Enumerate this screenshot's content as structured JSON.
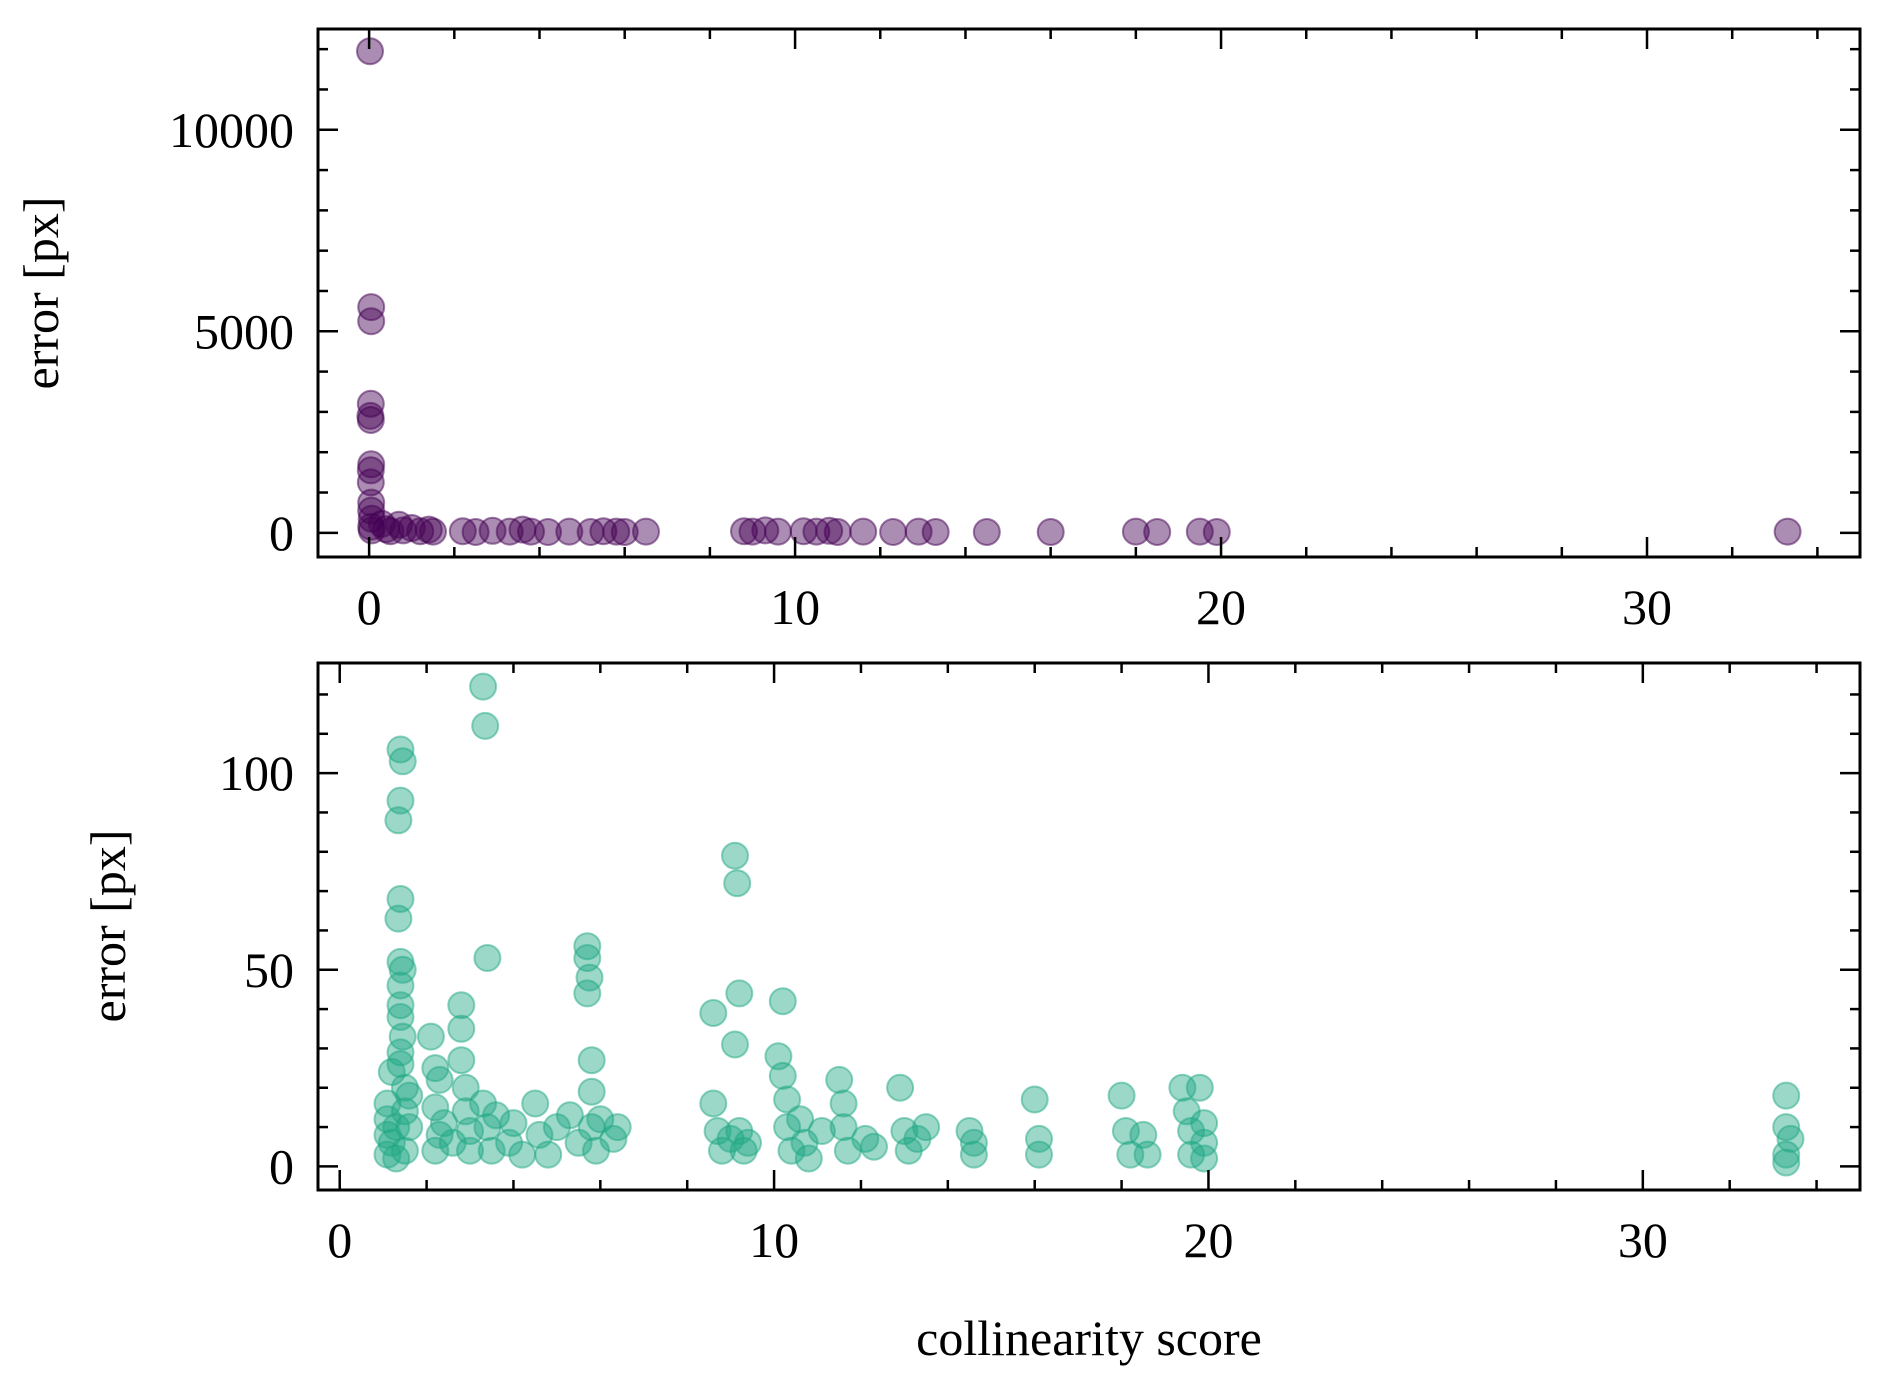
{
  "chart_data": [
    {
      "type": "scatter",
      "title": "",
      "xlabel": "",
      "ylabel": "error [px]",
      "xlim": [
        -1.2,
        35
      ],
      "ylim": [
        -600,
        12500
      ],
      "xticks": [
        0,
        10,
        20,
        30
      ],
      "xtick_labels": [
        "0",
        "10",
        "20",
        "30"
      ],
      "xminor_step": 2,
      "yticks": [
        0,
        5000,
        10000
      ],
      "ytick_labels": [
        "0",
        "5000",
        "10000"
      ],
      "yminor_step": 1000,
      "grid": false,
      "color": "#440154",
      "series": [
        {
          "values": [
            [
              0.02,
              11950
            ],
            [
              0.05,
              5600
            ],
            [
              0.05,
              5250
            ],
            [
              0.04,
              3200
            ],
            [
              0.03,
              2900
            ],
            [
              0.04,
              2800
            ],
            [
              0.05,
              1700
            ],
            [
              0.04,
              1550
            ],
            [
              0.04,
              1250
            ],
            [
              0.05,
              750
            ],
            [
              0.05,
              550
            ],
            [
              0.06,
              350
            ],
            [
              0.05,
              150
            ],
            [
              0.06,
              60
            ],
            [
              0.3,
              220
            ],
            [
              0.4,
              90
            ],
            [
              0.5,
              40
            ],
            [
              0.7,
              200
            ],
            [
              0.8,
              60
            ],
            [
              1.0,
              120
            ],
            [
              1.2,
              40
            ],
            [
              1.4,
              80
            ],
            [
              1.5,
              30
            ],
            [
              2.2,
              40
            ],
            [
              2.5,
              20
            ],
            [
              2.9,
              50
            ],
            [
              3.3,
              30
            ],
            [
              3.6,
              80
            ],
            [
              3.8,
              30
            ],
            [
              4.2,
              20
            ],
            [
              4.7,
              30
            ],
            [
              5.2,
              20
            ],
            [
              5.5,
              40
            ],
            [
              5.8,
              30
            ],
            [
              6.0,
              20
            ],
            [
              6.5,
              30
            ],
            [
              8.8,
              40
            ],
            [
              9.0,
              30
            ],
            [
              9.3,
              60
            ],
            [
              9.6,
              30
            ],
            [
              10.2,
              40
            ],
            [
              10.5,
              30
            ],
            [
              10.8,
              50
            ],
            [
              11.0,
              20
            ],
            [
              11.6,
              30
            ],
            [
              12.3,
              20
            ],
            [
              12.9,
              30
            ],
            [
              13.3,
              20
            ],
            [
              14.5,
              20
            ],
            [
              16.0,
              20
            ],
            [
              18.0,
              30
            ],
            [
              18.5,
              20
            ],
            [
              19.5,
              30
            ],
            [
              19.9,
              20
            ],
            [
              33.3,
              30
            ]
          ]
        }
      ]
    },
    {
      "type": "scatter",
      "title": "",
      "xlabel": "collinearity score",
      "ylabel": "error [px]",
      "xlim": [
        -0.5,
        35
      ],
      "ylim": [
        -6,
        128
      ],
      "xticks": [
        0,
        10,
        20,
        30
      ],
      "xtick_labels": [
        "0",
        "10",
        "20",
        "30"
      ],
      "xminor_step": 2,
      "yticks": [
        0,
        50,
        100
      ],
      "ytick_labels": [
        "0",
        "50",
        "100"
      ],
      "yminor_step": 10,
      "grid": false,
      "color": "#22a884",
      "series": [
        {
          "values": [
            [
              1.1,
              3
            ],
            [
              1.1,
              8
            ],
            [
              1.1,
              12
            ],
            [
              1.1,
              16
            ],
            [
              1.2,
              24
            ],
            [
              1.2,
              6
            ],
            [
              1.3,
              2
            ],
            [
              1.3,
              10
            ],
            [
              1.4,
              106
            ],
            [
              1.45,
              103
            ],
            [
              1.4,
              93
            ],
            [
              1.35,
              88
            ],
            [
              1.4,
              68
            ],
            [
              1.35,
              63
            ],
            [
              1.4,
              52
            ],
            [
              1.45,
              50
            ],
            [
              1.4,
              46
            ],
            [
              1.4,
              41
            ],
            [
              1.4,
              38
            ],
            [
              1.45,
              33
            ],
            [
              1.4,
              29
            ],
            [
              1.4,
              26
            ],
            [
              1.5,
              20
            ],
            [
              1.5,
              14
            ],
            [
              1.5,
              4
            ],
            [
              1.6,
              10
            ],
            [
              1.6,
              18
            ],
            [
              2.1,
              33
            ],
            [
              2.2,
              25
            ],
            [
              2.3,
              22
            ],
            [
              2.2,
              15
            ],
            [
              2.3,
              8
            ],
            [
              2.2,
              4
            ],
            [
              2.4,
              11
            ],
            [
              2.6,
              6
            ],
            [
              2.8,
              41
            ],
            [
              2.8,
              35
            ],
            [
              2.8,
              27
            ],
            [
              2.9,
              20
            ],
            [
              2.9,
              14
            ],
            [
              3.0,
              9
            ],
            [
              3.0,
              4
            ],
            [
              3.3,
              122
            ],
            [
              3.35,
              112
            ],
            [
              3.4,
              53
            ],
            [
              3.3,
              16
            ],
            [
              3.4,
              10
            ],
            [
              3.5,
              4
            ],
            [
              3.6,
              13
            ],
            [
              3.9,
              6
            ],
            [
              4.0,
              11
            ],
            [
              4.2,
              3
            ],
            [
              4.5,
              16
            ],
            [
              4.6,
              8
            ],
            [
              4.8,
              3
            ],
            [
              5.0,
              10
            ],
            [
              5.3,
              13
            ],
            [
              5.5,
              6
            ],
            [
              5.7,
              56
            ],
            [
              5.7,
              53
            ],
            [
              5.75,
              48
            ],
            [
              5.7,
              44
            ],
            [
              5.8,
              27
            ],
            [
              5.8,
              19
            ],
            [
              5.8,
              10
            ],
            [
              5.9,
              4
            ],
            [
              6.0,
              12
            ],
            [
              6.3,
              7
            ],
            [
              6.4,
              10
            ],
            [
              8.6,
              39
            ],
            [
              8.6,
              16
            ],
            [
              8.7,
              9
            ],
            [
              8.8,
              4
            ],
            [
              9.0,
              7
            ],
            [
              9.1,
              79
            ],
            [
              9.15,
              72
            ],
            [
              9.2,
              44
            ],
            [
              9.1,
              31
            ],
            [
              9.2,
              9
            ],
            [
              9.3,
              4
            ],
            [
              9.4,
              6
            ],
            [
              10.2,
              42
            ],
            [
              10.1,
              28
            ],
            [
              10.2,
              23
            ],
            [
              10.3,
              17
            ],
            [
              10.3,
              10
            ],
            [
              10.4,
              4
            ],
            [
              10.6,
              12
            ],
            [
              10.7,
              6
            ],
            [
              10.8,
              2
            ],
            [
              11.1,
              9
            ],
            [
              11.5,
              22
            ],
            [
              11.6,
              16
            ],
            [
              11.6,
              10
            ],
            [
              11.7,
              4
            ],
            [
              12.1,
              7
            ],
            [
              12.3,
              5
            ],
            [
              12.9,
              20
            ],
            [
              13.0,
              9
            ],
            [
              13.1,
              4
            ],
            [
              13.3,
              7
            ],
            [
              13.5,
              10
            ],
            [
              14.5,
              9
            ],
            [
              14.6,
              6
            ],
            [
              14.6,
              3
            ],
            [
              16.0,
              17
            ],
            [
              16.1,
              7
            ],
            [
              16.1,
              3
            ],
            [
              18.0,
              18
            ],
            [
              18.1,
              9
            ],
            [
              18.2,
              3
            ],
            [
              18.5,
              8
            ],
            [
              18.6,
              3
            ],
            [
              19.4,
              20
            ],
            [
              19.5,
              14
            ],
            [
              19.6,
              9
            ],
            [
              19.6,
              3
            ],
            [
              19.8,
              20
            ],
            [
              19.9,
              11
            ],
            [
              19.9,
              6
            ],
            [
              19.9,
              2
            ],
            [
              33.3,
              18
            ],
            [
              33.3,
              10
            ],
            [
              33.4,
              7
            ],
            [
              33.3,
              3
            ],
            [
              33.3,
              1
            ]
          ]
        }
      ]
    }
  ]
}
